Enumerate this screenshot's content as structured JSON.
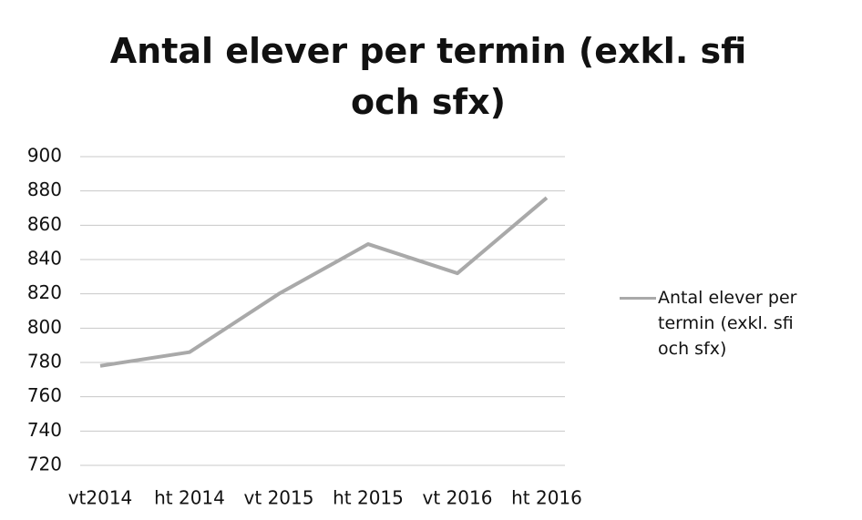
{
  "chart_data": {
    "type": "line",
    "title": "Antal elever per termin (exkl. sfi och sfx)",
    "categories": [
      "vt2014",
      "ht 2014",
      "vt 2015",
      "ht 2015",
      "vt 2016",
      "ht 2016"
    ],
    "series": [
      {
        "name": "Antal elever per termin (exkl. sfi och sfx)",
        "color": "#a9a9a9",
        "values": [
          778,
          786,
          820,
          849,
          832,
          876
        ]
      }
    ],
    "ylim": [
      720,
      900
    ],
    "yticks": [
      720,
      740,
      760,
      780,
      800,
      820,
      840,
      860,
      880,
      900
    ],
    "grid": true,
    "legend": "right"
  }
}
